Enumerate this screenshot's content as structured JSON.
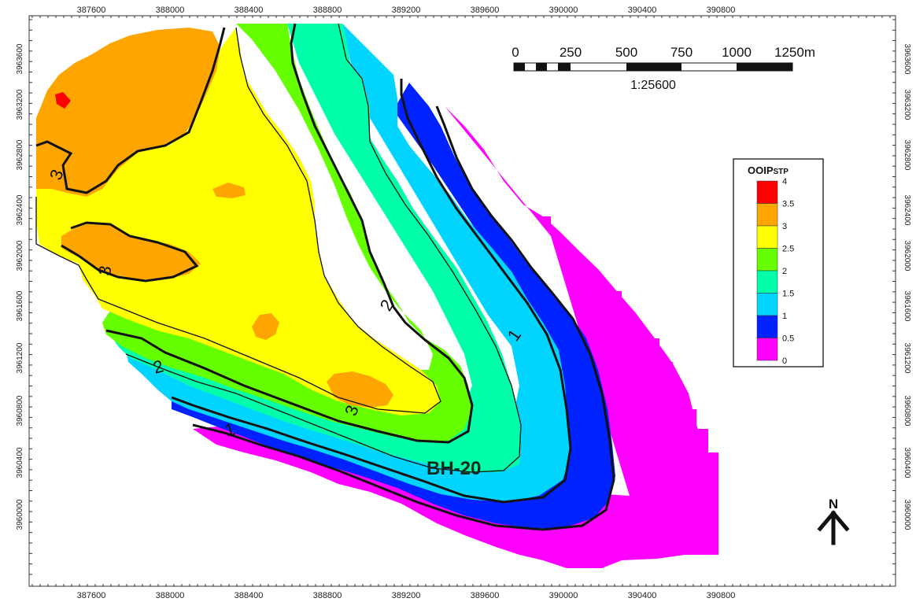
{
  "x_ticks": [
    "387600",
    "388000",
    "388400",
    "388800",
    "389200",
    "389600",
    "390000",
    "390400",
    "390800"
  ],
  "y_ticks": [
    "3963600",
    "3963200",
    "3962800",
    "3962400",
    "3962000",
    "3961600",
    "3961200",
    "3960800",
    "3960400",
    "3960000"
  ],
  "contour_labels": [
    "3",
    "3",
    "3",
    "2",
    "2",
    "1",
    "1"
  ],
  "well": {
    "name": "BH-20"
  },
  "scale_bar": {
    "labels": [
      "0",
      "250",
      "500",
      "750",
      "1000",
      "1250m"
    ],
    "ratio": "1:25600"
  },
  "legend": {
    "title_main": "OOIP",
    "title_sub": "STP",
    "values": [
      "4",
      "3.5",
      "3",
      "2.5",
      "2",
      "1.5",
      "1",
      "0.5",
      "0"
    ],
    "colors": [
      "#ff0000",
      "#ffa500",
      "#ffff00",
      "#66ff00",
      "#00ffaa",
      "#00d4ff",
      "#0022ff",
      "#ff00ff"
    ]
  },
  "north_arrow": {
    "label": "N"
  },
  "fill_colors": {
    "magenta": "#ff00ff",
    "blue": "#0022ff",
    "cyan": "#00d4ff",
    "aqua": "#00ffaa",
    "green": "#66ff00",
    "yellow": "#ffff00",
    "orange": "#ffa500",
    "red": "#ff0000"
  }
}
